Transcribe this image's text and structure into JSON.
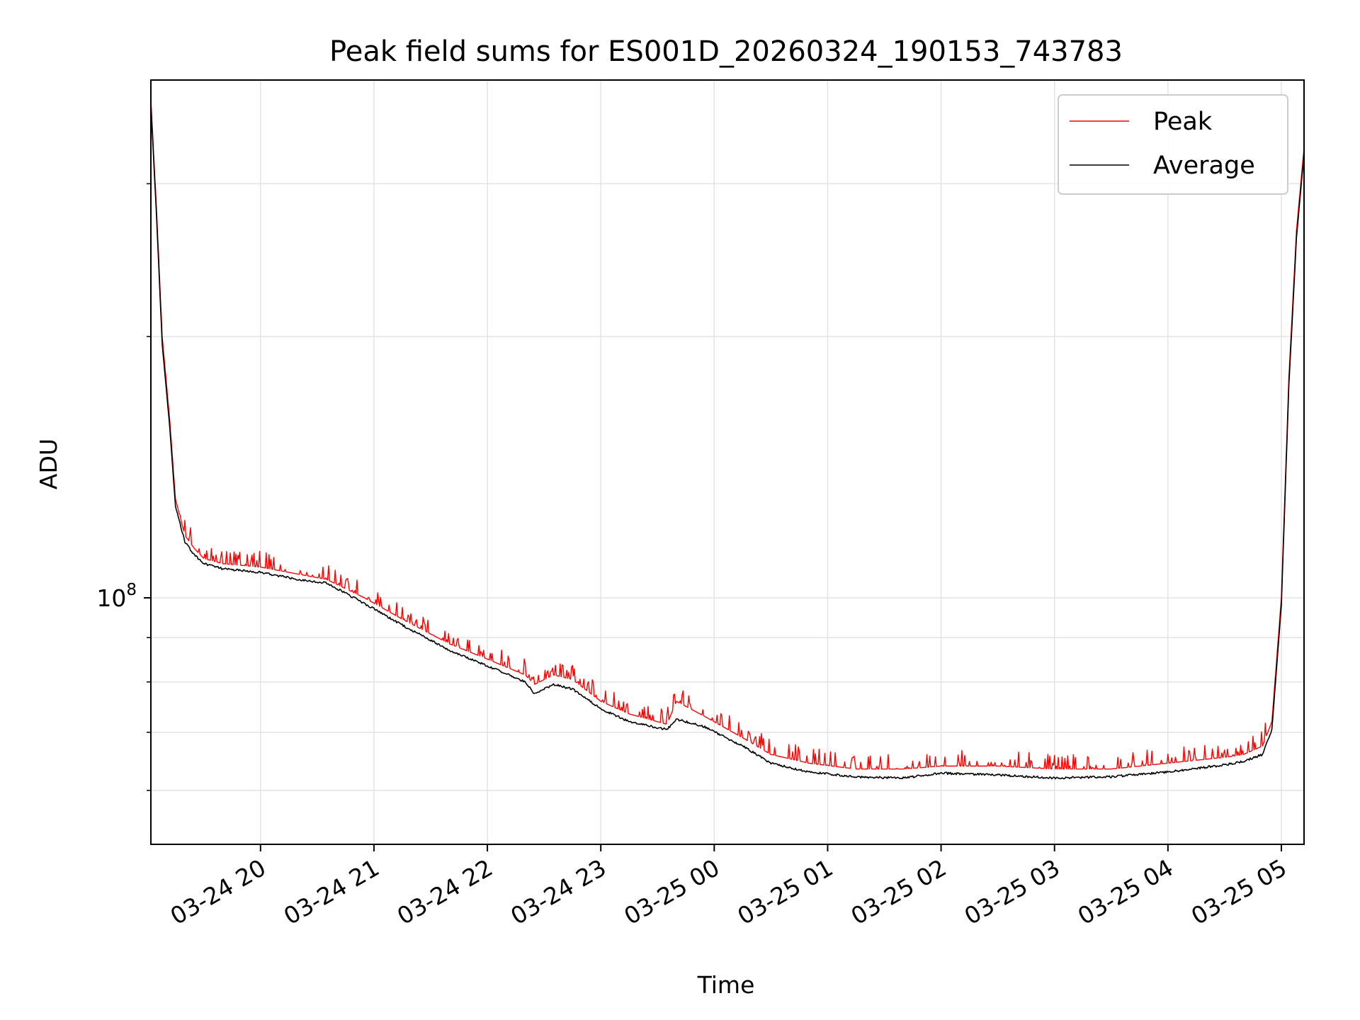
{
  "chart_data": {
    "type": "line",
    "title": "Peak field sums for ES001D_20260324_190153_743783",
    "xlabel": "Time",
    "ylabel": "ADU",
    "x_axis_type": "time",
    "xlim": [
      "2026-03-24 19:02",
      "2026-03-25 05:12"
    ],
    "yscale": "log",
    "ylim": [
      52000000,
      395000000
    ],
    "x_tick_labels": [
      "03-24 20",
      "03-24 21",
      "03-24 22",
      "03-24 23",
      "03-25 00",
      "03-25 01",
      "03-25 02",
      "03-25 03",
      "03-25 04",
      "03-25 05"
    ],
    "x_tick_values": [
      "2026-03-24 20:00",
      "2026-03-24 21:00",
      "2026-03-24 22:00",
      "2026-03-24 23:00",
      "2026-03-25 00:00",
      "2026-03-25 01:00",
      "2026-03-25 02:00",
      "2026-03-25 03:00",
      "2026-03-25 04:00",
      "2026-03-25 05:00"
    ],
    "y_major_ticks": [
      100000000
    ],
    "y_major_tick_label_base": "10",
    "y_major_tick_label_exp": "8",
    "y_minor_ticks": [
      60000000,
      70000000,
      80000000,
      90000000,
      200000000,
      300000000
    ],
    "grid": true,
    "legend_position": "upper right",
    "series": [
      {
        "name": "Peak",
        "color": "#ff0000",
        "x": [
          "2026-03-24 19:02",
          "2026-03-24 19:05",
          "2026-03-24 19:08",
          "2026-03-24 19:12",
          "2026-03-24 19:15",
          "2026-03-24 19:20",
          "2026-03-24 19:25",
          "2026-03-24 19:30",
          "2026-03-24 19:40",
          "2026-03-24 20:00",
          "2026-03-24 20:20",
          "2026-03-24 20:35",
          "2026-03-24 20:55",
          "2026-03-24 21:15",
          "2026-03-24 21:40",
          "2026-03-24 22:00",
          "2026-03-24 22:20",
          "2026-03-24 22:25",
          "2026-03-24 22:35",
          "2026-03-24 22:45",
          "2026-03-24 23:00",
          "2026-03-24 23:15",
          "2026-03-24 23:35",
          "2026-03-24 23:40",
          "2026-03-24 23:55",
          "2026-03-25 00:15",
          "2026-03-25 00:30",
          "2026-03-25 00:50",
          "2026-03-25 01:15",
          "2026-03-25 01:40",
          "2026-03-25 02:00",
          "2026-03-25 02:30",
          "2026-03-25 03:00",
          "2026-03-25 03:30",
          "2026-03-25 04:00",
          "2026-03-25 04:30",
          "2026-03-25 04:40",
          "2026-03-25 04:50",
          "2026-03-25 04:55",
          "2026-03-25 05:00",
          "2026-03-25 05:04",
          "2026-03-25 05:08",
          "2026-03-25 05:12"
        ],
        "y": [
          375000000,
          280000000,
          200000000,
          160000000,
          130000000,
          118000000,
          114000000,
          111000000,
          109500000,
          108500000,
          106500000,
          105000000,
          100000000,
          94500000,
          88500000,
          85000000,
          81500000,
          79500000,
          81500000,
          80500000,
          76000000,
          73500000,
          71500000,
          76000000,
          73000000,
          69000000,
          66000000,
          64500000,
          63500000,
          63500000,
          64000000,
          64000000,
          63500000,
          63500000,
          64500000,
          65500000,
          66000000,
          67500000,
          72000000,
          100000000,
          180000000,
          265000000,
          330000000
        ],
        "note_shape": "noisy upper envelope"
      },
      {
        "name": "Average",
        "color": "#000000",
        "x": [
          "2026-03-24 19:02",
          "2026-03-24 19:05",
          "2026-03-24 19:08",
          "2026-03-24 19:12",
          "2026-03-24 19:15",
          "2026-03-24 19:20",
          "2026-03-24 19:25",
          "2026-03-24 19:30",
          "2026-03-24 19:40",
          "2026-03-24 20:00",
          "2026-03-24 20:20",
          "2026-03-24 20:35",
          "2026-03-24 20:55",
          "2026-03-24 21:15",
          "2026-03-24 21:40",
          "2026-03-24 22:00",
          "2026-03-24 22:20",
          "2026-03-24 22:25",
          "2026-03-24 22:35",
          "2026-03-24 22:45",
          "2026-03-24 23:00",
          "2026-03-24 23:15",
          "2026-03-24 23:35",
          "2026-03-24 23:40",
          "2026-03-24 23:55",
          "2026-03-25 00:15",
          "2026-03-25 00:30",
          "2026-03-25 00:50",
          "2026-03-25 01:15",
          "2026-03-25 01:40",
          "2026-03-25 02:00",
          "2026-03-25 02:30",
          "2026-03-25 03:00",
          "2026-03-25 03:30",
          "2026-03-25 04:00",
          "2026-03-25 04:30",
          "2026-03-25 04:40",
          "2026-03-25 04:50",
          "2026-03-25 04:55",
          "2026-03-25 05:00",
          "2026-03-25 05:04",
          "2026-03-25 05:08",
          "2026-03-25 05:12"
        ],
        "y": [
          370000000,
          275000000,
          196000000,
          157000000,
          127500000,
          116000000,
          112000000,
          109500000,
          108000000,
          107000000,
          105000000,
          104000000,
          98500000,
          93000000,
          87000000,
          83500000,
          80000000,
          77500000,
          79500000,
          78500000,
          74500000,
          72000000,
          70500000,
          72500000,
          71000000,
          67500000,
          64500000,
          63000000,
          62200000,
          62000000,
          62800000,
          62500000,
          62000000,
          62200000,
          63000000,
          64200000,
          64800000,
          66000000,
          70500000,
          98000000,
          176000000,
          260000000,
          325000000
        ]
      }
    ]
  }
}
